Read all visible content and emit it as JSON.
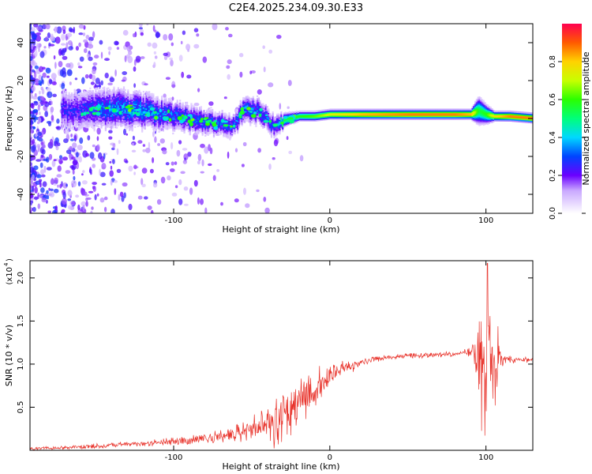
{
  "figure_title": "C2E4.2025.234.09.30.E33",
  "chart_data": [
    {
      "type": "heatmap",
      "title": "",
      "xlabel": "Height of straight line (km)",
      "ylabel": "Frequency (Hz)",
      "xlim": [
        -192,
        130
      ],
      "ylim": [
        -50,
        50
      ],
      "xticks": [
        -100,
        0,
        100
      ],
      "xtick_labels": [
        "-100",
        "0",
        "100"
      ],
      "yticks": [
        -40,
        -20,
        0,
        20,
        40
      ],
      "ytick_labels": [
        "-40",
        "-20",
        "0",
        "20",
        "40"
      ],
      "ridge": {
        "x": [
          -160,
          -140,
          -120,
          -100,
          -80,
          -62,
          -55,
          -45,
          -35,
          -30,
          -20,
          -10,
          0,
          20,
          50,
          80,
          90,
          95,
          100,
          105,
          115,
          130
        ],
        "y": [
          4,
          5,
          4,
          1,
          -2,
          -4,
          5,
          3,
          -5,
          -1,
          1,
          1,
          2,
          2,
          2,
          2,
          2,
          4,
          2,
          1,
          1,
          0
        ],
        "width": [
          9,
          9,
          8,
          7,
          6,
          5,
          6,
          6,
          5,
          3,
          2,
          2,
          2,
          2,
          2,
          2,
          2,
          6,
          4,
          2,
          2,
          2
        ],
        "peak": [
          0.25,
          0.35,
          0.35,
          0.3,
          0.3,
          0.3,
          0.35,
          0.3,
          0.3,
          0.55,
          0.6,
          0.65,
          0.75,
          0.85,
          0.9,
          0.9,
          0.85,
          0.55,
          0.6,
          0.8,
          0.9,
          0.9
        ]
      },
      "colorbar": {
        "label": "Normalized spectral amplitude",
        "range": [
          0,
          1
        ],
        "ticks": [
          0.0,
          0.2,
          0.4,
          0.6,
          0.8
        ],
        "tick_labels": [
          "0.0",
          "0.2",
          "0.4",
          "0.6",
          "0.8"
        ]
      }
    },
    {
      "type": "line",
      "title": "",
      "xlabel": "Height of straight line (km)",
      "ylabel": "SNR (10 * v/v)",
      "scale_label": "(x10",
      "scale_exponent": "4",
      "xlim": [
        -192,
        130
      ],
      "ylim": [
        0,
        2.2
      ],
      "xticks": [
        -100,
        0,
        100
      ],
      "xtick_labels": [
        "-100",
        "0",
        "100"
      ],
      "yticks": [
        0.5,
        1.0,
        1.5,
        2.0
      ],
      "ytick_labels": [
        "0.5",
        "1.0",
        "1.5",
        "2.0"
      ],
      "series": [
        {
          "name": "SNR",
          "color": "#e8322a",
          "x": [
            -192,
            -170,
            -150,
            -130,
            -110,
            -90,
            -75,
            -60,
            -50,
            -40,
            -35,
            -30,
            -20,
            -10,
            0,
            10,
            20,
            30,
            40,
            50,
            60,
            70,
            80,
            90,
            92,
            95,
            98,
            100,
            102,
            105,
            108,
            110,
            120,
            130
          ],
          "base": [
            0.02,
            0.03,
            0.05,
            0.07,
            0.09,
            0.12,
            0.15,
            0.2,
            0.25,
            0.3,
            0.35,
            0.45,
            0.55,
            0.7,
            0.85,
            0.95,
            1.02,
            1.06,
            1.08,
            1.1,
            1.1,
            1.11,
            1.12,
            1.14,
            1.15,
            1.1,
            0.8,
            0.9,
            1.4,
            1.0,
            1.1,
            1.06,
            1.05,
            1.05
          ],
          "noise": [
            0.02,
            0.02,
            0.03,
            0.03,
            0.04,
            0.05,
            0.06,
            0.1,
            0.15,
            0.2,
            0.3,
            0.3,
            0.3,
            0.25,
            0.15,
            0.08,
            0.05,
            0.04,
            0.03,
            0.03,
            0.03,
            0.03,
            0.03,
            0.05,
            0.2,
            0.5,
            0.9,
            0.8,
            0.8,
            0.6,
            0.3,
            0.08,
            0.03,
            0.03
          ],
          "peak_x": 101,
          "peak_y": 2.17
        }
      ]
    }
  ]
}
